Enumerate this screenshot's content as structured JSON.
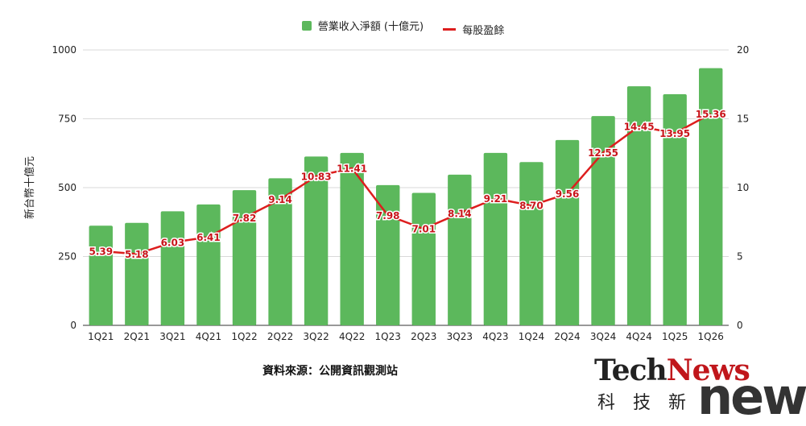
{
  "legend": {
    "bar_label": "營業收入淨額 (十億元)",
    "line_label": "每股盈餘"
  },
  "source": "資料來源：公開資訊觀測站",
  "logo": {
    "tech": "Tech",
    "news_colored": "News",
    "sub": "科技新",
    "big": "news"
  },
  "colors": {
    "bar": "#5cb85c",
    "line": "#dd1e1e",
    "label_text": "#c8141a",
    "grid": "#d9d9d9"
  },
  "chart_data": {
    "type": "bar",
    "categories": [
      "1Q21",
      "2Q21",
      "3Q21",
      "4Q21",
      "1Q22",
      "2Q22",
      "3Q22",
      "4Q22",
      "1Q23",
      "2Q23",
      "3Q23",
      "4Q23",
      "1Q24",
      "2Q24",
      "3Q24",
      "4Q24",
      "1Q25",
      "1Q26"
    ],
    "series": [
      {
        "name": "營業收入淨額 (十億元)",
        "type": "bar",
        "axis": "left",
        "values": [
          362,
          372,
          414,
          439,
          491,
          534,
          613,
          626,
          509,
          481,
          547,
          626,
          593,
          673,
          760,
          868,
          839,
          934
        ]
      },
      {
        "name": "每股盈餘",
        "type": "line",
        "axis": "right",
        "values": [
          5.39,
          5.18,
          6.03,
          6.41,
          7.82,
          9.14,
          10.83,
          11.41,
          7.98,
          7.01,
          8.14,
          9.21,
          8.7,
          9.56,
          12.55,
          14.45,
          13.95,
          15.36
        ],
        "data_labels": [
          "5.39",
          "5.18",
          "6.03",
          "6.41",
          "7.82",
          "9.14",
          "10.83",
          "11.41",
          "7.98",
          "7.01",
          "8.14",
          "9.21",
          "8.70",
          "9.56",
          "12.55",
          "14.45",
          "13.95",
          "15.36"
        ]
      }
    ],
    "ylabel": "新台幣十億元",
    "ylim": [
      0,
      1000
    ],
    "yticks": [
      "0",
      "250",
      "500",
      "750",
      "1000"
    ],
    "y2lim": [
      0,
      20
    ],
    "y2ticks": [
      "0",
      "5",
      "10",
      "15",
      "20"
    ],
    "grid": true,
    "legend_position": "top-center"
  }
}
